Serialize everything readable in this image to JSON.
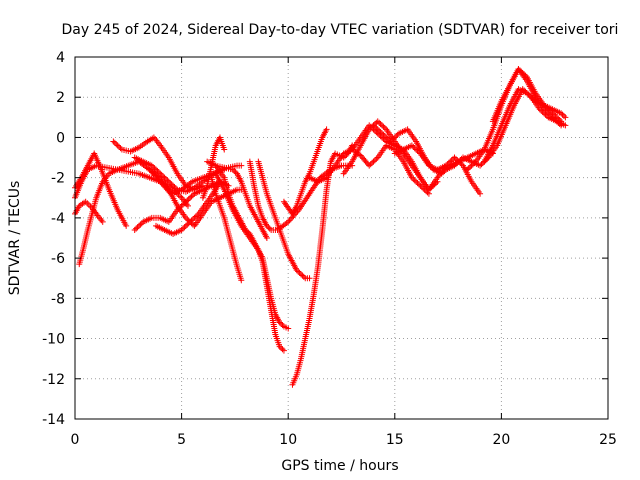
{
  "chart_data": {
    "type": "scatter",
    "title": "Day 245 of 2024, Sidereal Day-to-day VTEC variation (SDTVAR) for receiver tori",
    "xlabel": "GPS time / hours",
    "ylabel": "SDTVAR / TECUs",
    "xlim": [
      0,
      25
    ],
    "ylim": [
      -14,
      4
    ],
    "xticks": [
      0,
      5,
      10,
      15,
      20,
      25
    ],
    "yticks": [
      -14,
      -12,
      -10,
      -8,
      -6,
      -4,
      -2,
      0,
      2,
      4
    ],
    "grid": true,
    "marker": "+",
    "color": "#ff0000",
    "series": [
      {
        "x": [
          0.0,
          0.3,
          0.6,
          1.0,
          1.5,
          2.0,
          2.5,
          3.0,
          3.5,
          4.0,
          4.5,
          5.0,
          5.5,
          6.0,
          6.5,
          7.0
        ],
        "y": [
          -3.0,
          -2.2,
          -1.6,
          -1.4,
          -1.5,
          -1.6,
          -1.4,
          -1.2,
          -1.6,
          -2.2,
          -2.8,
          -2.6,
          -2.2,
          -2.0,
          -1.8,
          -1.6
        ]
      },
      {
        "x": [
          0.0,
          0.3,
          0.6,
          0.9,
          1.2,
          1.6,
          2.0,
          2.4
        ],
        "y": [
          -2.5,
          -2.0,
          -1.4,
          -0.8,
          -1.5,
          -2.6,
          -3.6,
          -4.4
        ]
      },
      {
        "x": [
          0.2,
          0.4,
          0.6,
          0.8,
          1.0,
          1.3,
          1.6,
          2.0,
          2.5,
          3.0,
          3.5,
          4.0,
          4.5,
          5.0,
          5.3
        ],
        "y": [
          -6.3,
          -5.5,
          -4.6,
          -3.8,
          -3.0,
          -2.2,
          -1.8,
          -1.6,
          -1.7,
          -1.8,
          -2.0,
          -2.2,
          -2.5,
          -3.0,
          -3.4
        ]
      },
      {
        "x": [
          0.0,
          0.2,
          0.5,
          0.8,
          1.0,
          1.3
        ],
        "y": [
          -3.8,
          -3.4,
          -3.2,
          -3.5,
          -3.8,
          -4.2
        ]
      },
      {
        "x": [
          1.8,
          2.2,
          2.6,
          3.0,
          3.4,
          3.7,
          4.0,
          4.4,
          4.8,
          5.2,
          5.6,
          6.0
        ],
        "y": [
          -0.2,
          -0.6,
          -0.7,
          -0.5,
          -0.2,
          0.0,
          -0.4,
          -1.0,
          -1.8,
          -2.4,
          -2.6,
          -2.4
        ]
      },
      {
        "x": [
          2.8,
          3.2,
          3.6,
          4.0,
          4.4,
          4.8,
          5.2,
          5.6,
          6.0,
          6.4,
          6.8,
          7.2,
          7.6,
          7.8
        ],
        "y": [
          -1.0,
          -1.2,
          -1.4,
          -1.8,
          -2.2,
          -2.6,
          -2.7,
          -2.5,
          -2.2,
          -1.9,
          -1.6,
          -1.5,
          -1.4,
          -1.4
        ]
      },
      {
        "x": [
          2.8,
          3.2,
          3.6,
          4.0,
          4.4,
          4.8,
          5.2,
          5.6,
          6.0,
          6.4,
          6.8,
          7.2
        ],
        "y": [
          -4.6,
          -4.2,
          -4.0,
          -4.0,
          -4.2,
          -3.6,
          -3.2,
          -2.8,
          -2.6,
          -2.4,
          -2.2,
          -2.4
        ]
      },
      {
        "x": [
          3.5,
          4.0,
          4.4,
          4.8,
          5.2,
          5.6,
          6.0,
          6.4,
          6.8,
          7.2,
          7.6,
          7.8
        ],
        "y": [
          -1.6,
          -2.0,
          -2.6,
          -3.4,
          -4.0,
          -4.4,
          -3.8,
          -3.2,
          -3.0,
          -2.8,
          -2.6,
          -2.6
        ]
      },
      {
        "x": [
          3.8,
          4.2,
          4.6,
          5.0,
          5.4,
          5.8,
          6.2,
          6.6,
          6.8
        ],
        "y": [
          -4.4,
          -4.6,
          -4.8,
          -4.6,
          -4.2,
          -3.8,
          -3.2,
          -2.6,
          -2.2
        ]
      },
      {
        "x": [
          6.0,
          6.2,
          6.4,
          6.6,
          6.8,
          7.0
        ],
        "y": [
          -3.0,
          -2.4,
          -1.4,
          -0.4,
          0.0,
          -0.6
        ]
      },
      {
        "x": [
          6.4,
          6.6,
          6.8,
          7.0,
          7.2,
          7.4,
          7.6,
          7.8
        ],
        "y": [
          -2.0,
          -2.8,
          -3.4,
          -4.0,
          -4.8,
          -5.6,
          -6.4,
          -7.1
        ]
      },
      {
        "x": [
          6.2,
          6.6,
          7.0,
          7.4,
          7.6,
          7.8,
          8.0,
          8.2,
          8.5,
          8.8,
          9.0
        ],
        "y": [
          -1.2,
          -1.4,
          -1.5,
          -1.6,
          -1.8,
          -2.2,
          -2.8,
          -3.4,
          -4.0,
          -4.6,
          -5.0
        ]
      },
      {
        "x": [
          6.6,
          7.0,
          7.2,
          7.4,
          7.6,
          7.8,
          8.0,
          8.2,
          8.4,
          8.6,
          8.8,
          9.0,
          9.2,
          9.4,
          9.6,
          9.8,
          10.0
        ],
        "y": [
          -1.4,
          -2.0,
          -2.8,
          -3.4,
          -3.8,
          -4.2,
          -4.6,
          -4.8,
          -5.2,
          -5.6,
          -6.0,
          -7.0,
          -8.0,
          -8.8,
          -9.2,
          -9.4,
          -9.5
        ]
      },
      {
        "x": [
          6.6,
          7.0,
          7.4,
          7.8,
          8.2,
          8.6,
          8.8,
          9.0,
          9.2,
          9.4,
          9.6,
          9.8
        ],
        "y": [
          -1.8,
          -2.6,
          -3.6,
          -4.4,
          -5.0,
          -5.6,
          -6.2,
          -7.4,
          -8.6,
          -9.8,
          -10.4,
          -10.6
        ]
      },
      {
        "x": [
          8.2,
          8.4,
          8.6,
          8.8,
          9.0,
          9.2,
          9.5,
          10.0,
          10.5,
          11.0,
          11.5,
          12.0,
          12.5,
          13.0
        ],
        "y": [
          -1.2,
          -2.4,
          -3.4,
          -4.0,
          -4.4,
          -4.6,
          -4.6,
          -4.2,
          -3.6,
          -2.8,
          -2.0,
          -1.6,
          -1.4,
          -1.4
        ]
      },
      {
        "x": [
          8.6,
          8.8,
          9.0,
          9.2,
          9.4,
          9.6,
          9.8,
          10.0,
          10.2,
          10.4,
          10.6,
          10.8,
          11.0
        ],
        "y": [
          -1.2,
          -2.0,
          -2.8,
          -3.4,
          -4.0,
          -4.6,
          -5.2,
          -5.8,
          -6.2,
          -6.6,
          -6.8,
          -7.0,
          -7.0
        ]
      },
      {
        "x": [
          9.8,
          10.0,
          10.2,
          10.4,
          10.6,
          10.8,
          11.0,
          11.2,
          11.4,
          11.6,
          11.8
        ],
        "y": [
          -3.2,
          -3.5,
          -3.8,
          -3.4,
          -2.8,
          -2.2,
          -1.8,
          -1.2,
          -0.6,
          0.0,
          0.4
        ]
      },
      {
        "x": [
          10.2,
          10.4,
          10.6,
          10.8,
          11.0,
          11.2,
          11.4,
          11.6,
          11.8,
          12.0,
          12.2,
          12.4,
          12.6,
          12.8,
          13.0
        ],
        "y": [
          -12.3,
          -11.8,
          -11.0,
          -10.0,
          -9.0,
          -7.8,
          -6.4,
          -4.6,
          -2.6,
          -1.2,
          -0.8,
          -0.9,
          -1.0,
          -0.8,
          -0.4
        ]
      },
      {
        "x": [
          11.0,
          11.4,
          11.8,
          12.2,
          12.6,
          13.0,
          13.4,
          13.8,
          14.2,
          14.6,
          15.0,
          15.4,
          15.8,
          16.2,
          16.6
        ],
        "y": [
          -2.0,
          -2.2,
          -2.0,
          -1.4,
          -0.8,
          -0.6,
          -0.9,
          -1.4,
          -1.0,
          -0.4,
          -0.6,
          -1.2,
          -2.0,
          -2.4,
          -2.8
        ]
      },
      {
        "x": [
          12.6,
          13.0,
          13.4,
          13.8,
          14.2,
          14.6,
          15.0,
          15.4,
          15.8,
          16.2,
          16.6,
          17.0
        ],
        "y": [
          -1.8,
          -1.2,
          -0.4,
          0.4,
          0.8,
          0.4,
          -0.2,
          -0.8,
          -1.4,
          -2.0,
          -2.6,
          -2.2
        ]
      },
      {
        "x": [
          13.0,
          13.4,
          13.8,
          14.2,
          14.6,
          15.0,
          15.4,
          15.8,
          16.2,
          16.6,
          17.0,
          17.4
        ],
        "y": [
          -0.6,
          0.0,
          0.6,
          0.2,
          -0.2,
          -0.4,
          -0.6,
          -1.2,
          -2.0,
          -2.6,
          -2.0,
          -1.4
        ]
      },
      {
        "x": [
          14.0,
          14.4,
          14.8,
          15.2,
          15.6,
          16.0,
          16.4,
          16.8,
          17.2,
          17.6,
          18.0,
          18.4,
          18.8,
          19.2,
          19.6
        ],
        "y": [
          0.6,
          0.2,
          -0.2,
          0.2,
          0.4,
          -0.2,
          -1.0,
          -1.6,
          -1.8,
          -1.4,
          -1.2,
          -1.0,
          -0.8,
          -0.6,
          -0.8
        ]
      },
      {
        "x": [
          15.0,
          15.4,
          15.8,
          16.2,
          16.6,
          17.0,
          17.4,
          17.8,
          18.2,
          18.6,
          19.0
        ],
        "y": [
          -0.8,
          -0.6,
          -0.4,
          -0.8,
          -1.4,
          -1.6,
          -1.4,
          -1.0,
          -1.4,
          -2.2,
          -2.8
        ]
      },
      {
        "x": [
          17.4,
          17.8,
          18.2,
          18.6,
          19.0,
          19.4,
          19.8,
          20.2,
          20.6,
          21.0,
          21.4,
          21.8,
          22.2,
          22.6,
          23.0
        ],
        "y": [
          -1.6,
          -1.4,
          -1.0,
          -1.2,
          -1.4,
          -1.0,
          -0.4,
          0.6,
          1.6,
          2.4,
          2.0,
          1.4,
          1.0,
          0.8,
          0.6
        ]
      },
      {
        "x": [
          18.4,
          18.8,
          19.2,
          19.6,
          20.0,
          20.4,
          20.8,
          21.2,
          21.6,
          22.0,
          22.4,
          22.8
        ],
        "y": [
          -1.6,
          -1.2,
          -0.6,
          0.4,
          1.6,
          2.6,
          3.4,
          3.0,
          2.2,
          1.6,
          1.2,
          0.8
        ]
      },
      {
        "x": [
          19.2,
          19.6,
          20.0,
          20.4,
          20.8,
          21.2,
          21.6,
          22.0,
          22.4,
          22.8,
          23.0
        ],
        "y": [
          -1.2,
          -0.4,
          0.6,
          1.6,
          2.4,
          2.2,
          1.8,
          1.6,
          1.4,
          1.2,
          1.0
        ]
      },
      {
        "x": [
          19.6,
          20.0,
          20.4,
          20.8,
          21.2,
          21.6,
          22.0,
          22.4,
          22.8
        ],
        "y": [
          0.8,
          1.8,
          2.6,
          3.4,
          2.8,
          2.0,
          1.4,
          1.0,
          0.6
        ]
      }
    ]
  }
}
